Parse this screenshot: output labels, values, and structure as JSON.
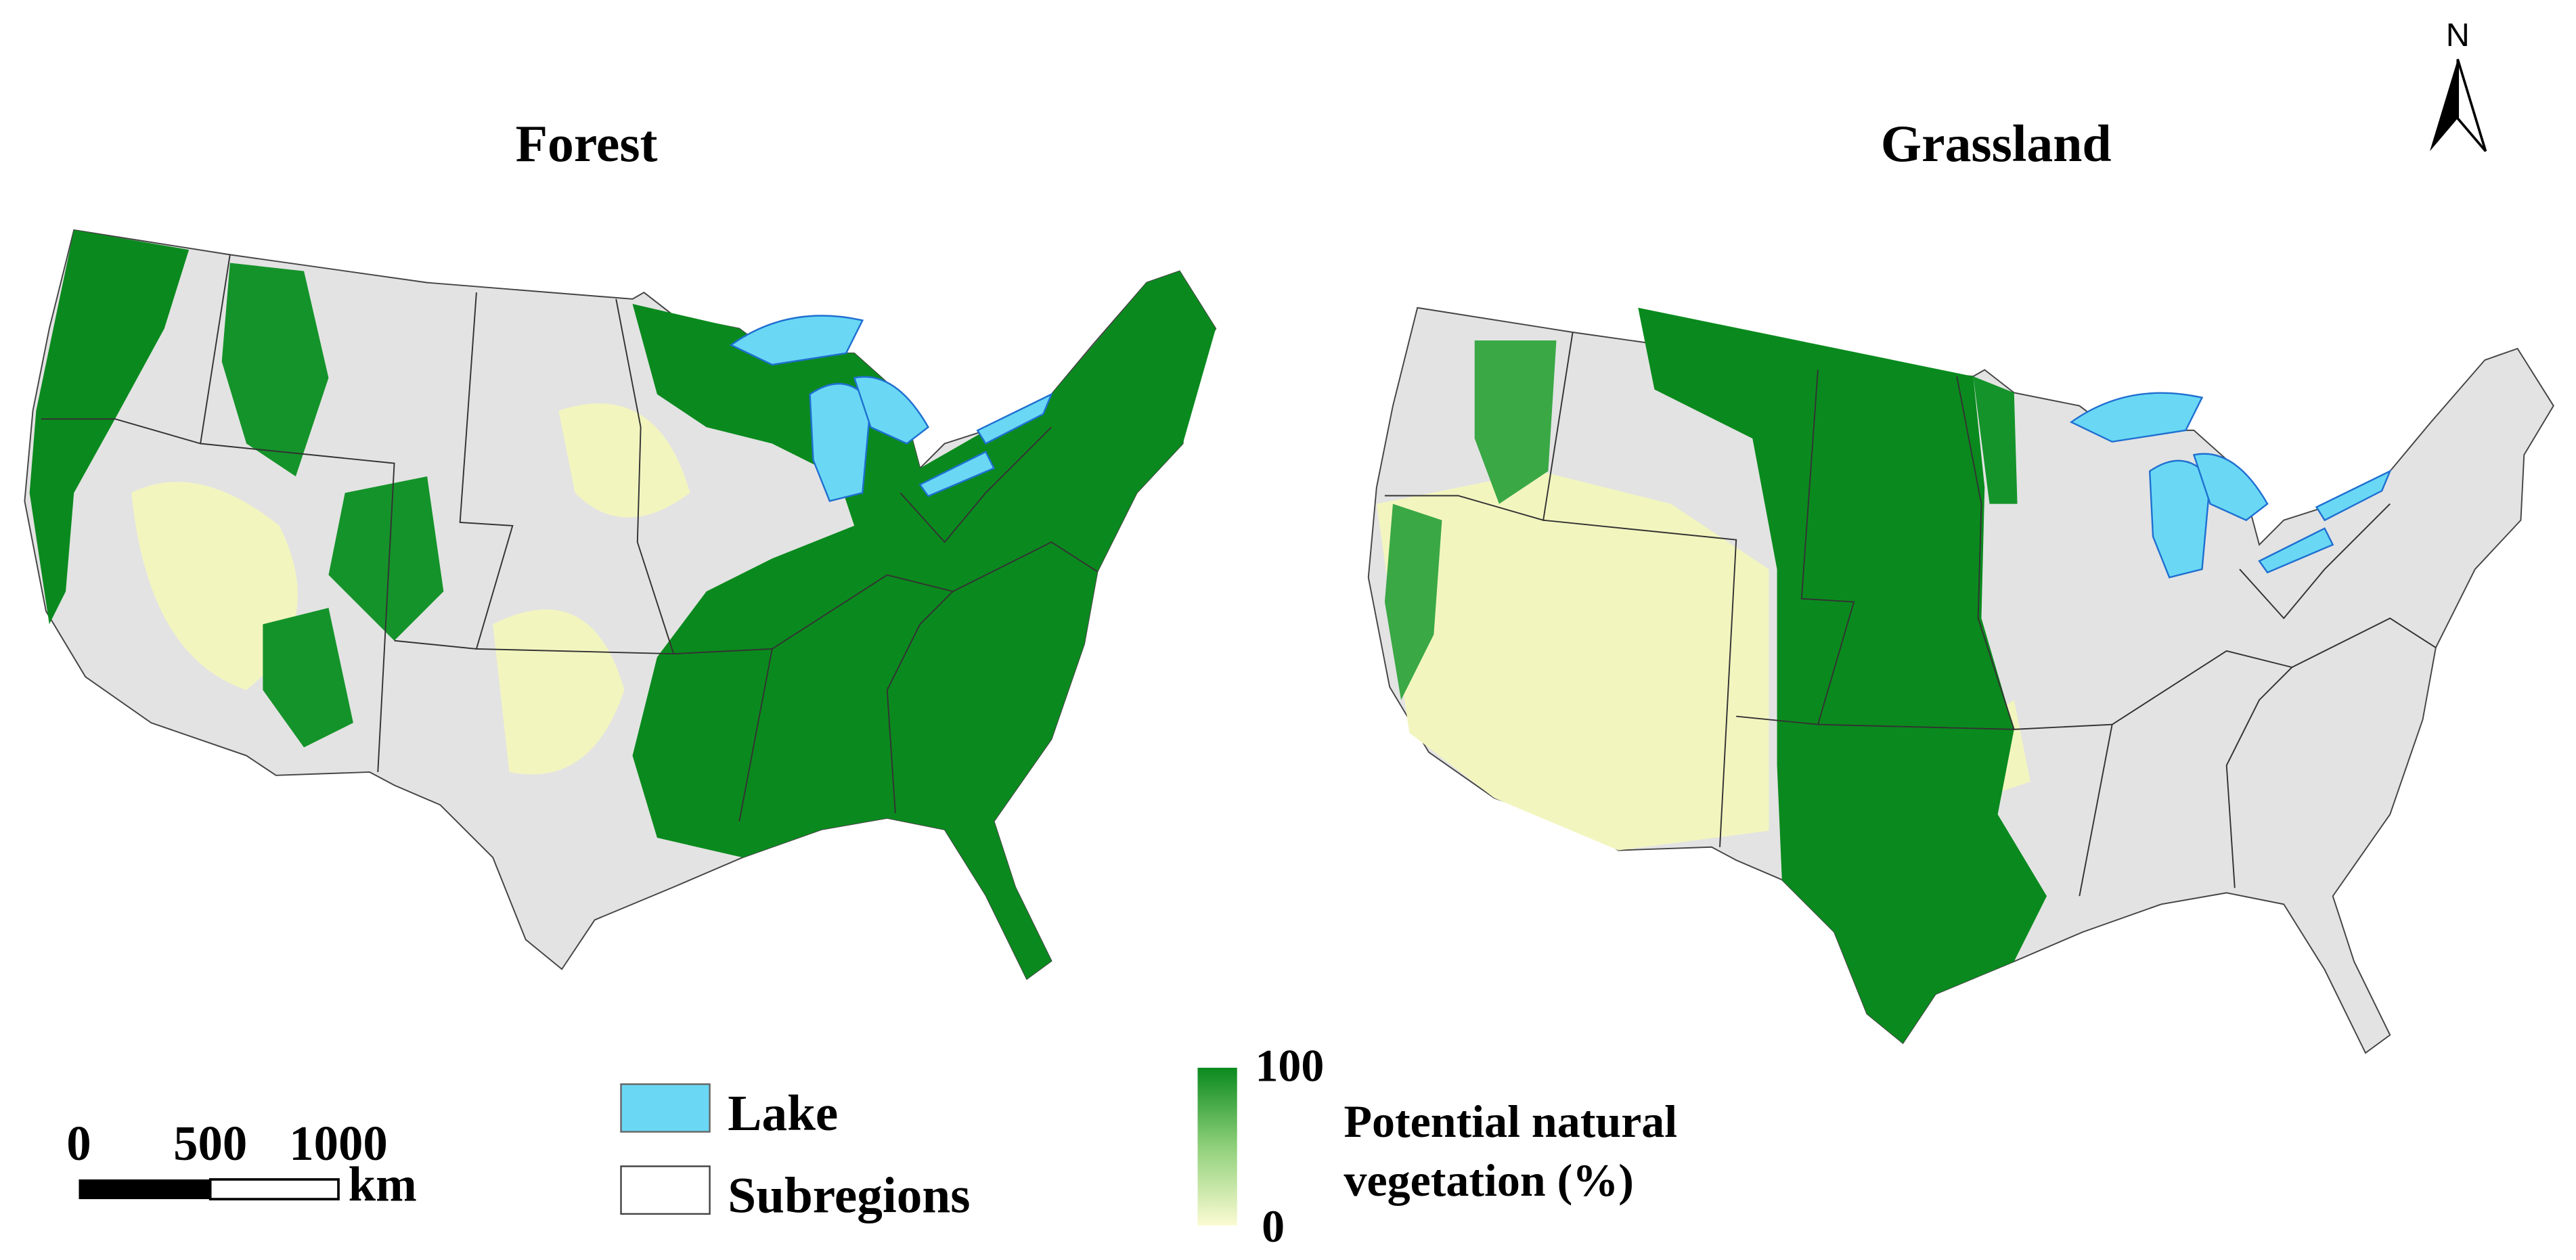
{
  "maps": [
    {
      "title": "Forest"
    },
    {
      "title": "Grassland"
    }
  ],
  "north_arrow": "N",
  "scale_bar": {
    "labels": [
      0,
      500,
      1000
    ],
    "unit": "km"
  },
  "legend": {
    "items": [
      "Lake",
      "Subregions"
    ]
  },
  "colorbar": {
    "max": 100,
    "min": 0,
    "title": [
      "Potential natural",
      "vegetation (%)"
    ]
  }
}
